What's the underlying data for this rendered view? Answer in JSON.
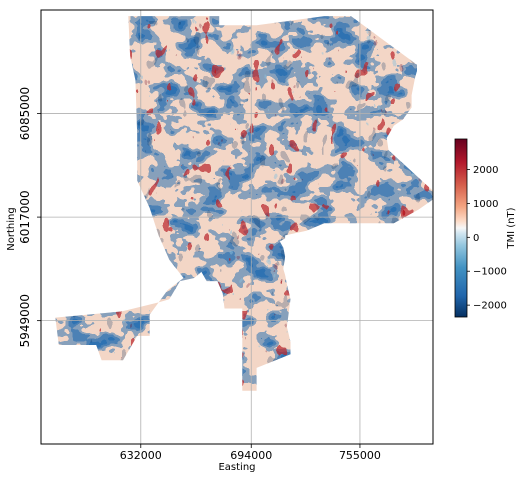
{
  "chart_data": {
    "type": "heatmap",
    "title": "",
    "xlabel": "Easting",
    "ylabel": "Northing",
    "x_ticks": [
      632000,
      694000,
      755000
    ],
    "x_tick_labels": [
      "632000",
      "694000",
      "755000"
    ],
    "y_ticks": [
      5949000,
      6017000,
      6085000
    ],
    "y_tick_labels": [
      "5949000",
      "6017000",
      "6085000"
    ],
    "xlim": [
      576000,
      796000
    ],
    "ylim": [
      5868000,
      6153000
    ],
    "grid": true,
    "colorbar": {
      "label": "TMI (nT)",
      "colormap": "RdBu_r",
      "vmin": -2350,
      "vmax": 2900,
      "ticks": [
        2000,
        1000,
        0,
        -1000,
        -2000
      ],
      "tick_labels": [
        "2000",
        "1000",
        "0",
        "−1000",
        "−2000"
      ]
    },
    "survey_extent_vertices_en": [
      [
        625000,
        6149000
      ],
      [
        676000,
        6149000
      ],
      [
        676000,
        6143000
      ],
      [
        697000,
        6143000
      ],
      [
        735000,
        6149000
      ],
      [
        750000,
        6149000
      ],
      [
        787000,
        6117000
      ],
      [
        787000,
        6113000
      ],
      [
        786000,
        6109000
      ],
      [
        784000,
        6097000
      ],
      [
        784000,
        6089000
      ],
      [
        779000,
        6081000
      ],
      [
        774000,
        6077000
      ],
      [
        770000,
        6069000
      ],
      [
        771000,
        6061000
      ],
      [
        799000,
        6031000
      ],
      [
        788000,
        6022000
      ],
      [
        774000,
        6013000
      ],
      [
        735000,
        6013000
      ],
      [
        725000,
        6008000
      ],
      [
        713000,
        6005000
      ],
      [
        713000,
        6003000
      ],
      [
        710000,
        6001000
      ],
      [
        712000,
        5997000
      ],
      [
        713000,
        5991000
      ],
      [
        712000,
        5983000
      ],
      [
        713000,
        5979000
      ],
      [
        714000,
        5973000
      ],
      [
        716000,
        5963000
      ],
      [
        714000,
        5945000
      ],
      [
        716000,
        5935000
      ],
      [
        716000,
        5927000
      ],
      [
        697000,
        5918000
      ],
      [
        697000,
        5903000
      ],
      [
        689000,
        5903000
      ],
      [
        689000,
        5957000
      ],
      [
        679000,
        5957000
      ],
      [
        678000,
        5967000
      ],
      [
        675000,
        5975000
      ],
      [
        669000,
        5975000
      ],
      [
        666000,
        5981000
      ],
      [
        662000,
        5977000
      ],
      [
        654000,
        5975000
      ],
      [
        648000,
        5963000
      ],
      [
        642000,
        5961000
      ],
      [
        621000,
        5955000
      ],
      [
        584000,
        5951000
      ],
      [
        586000,
        5933000
      ],
      [
        607000,
        5933000
      ],
      [
        610000,
        5923000
      ],
      [
        622000,
        5923000
      ],
      [
        630000,
        5939000
      ],
      [
        637000,
        5939000
      ],
      [
        637000,
        5953000
      ],
      [
        647000,
        5969000
      ],
      [
        656000,
        5977000
      ],
      [
        648000,
        5989000
      ],
      [
        642000,
        6005000
      ],
      [
        637000,
        6023000
      ],
      [
        630000,
        6041000
      ],
      [
        630000,
        6071000
      ],
      [
        629000,
        6107000
      ],
      [
        626000,
        6123000
      ]
    ]
  }
}
